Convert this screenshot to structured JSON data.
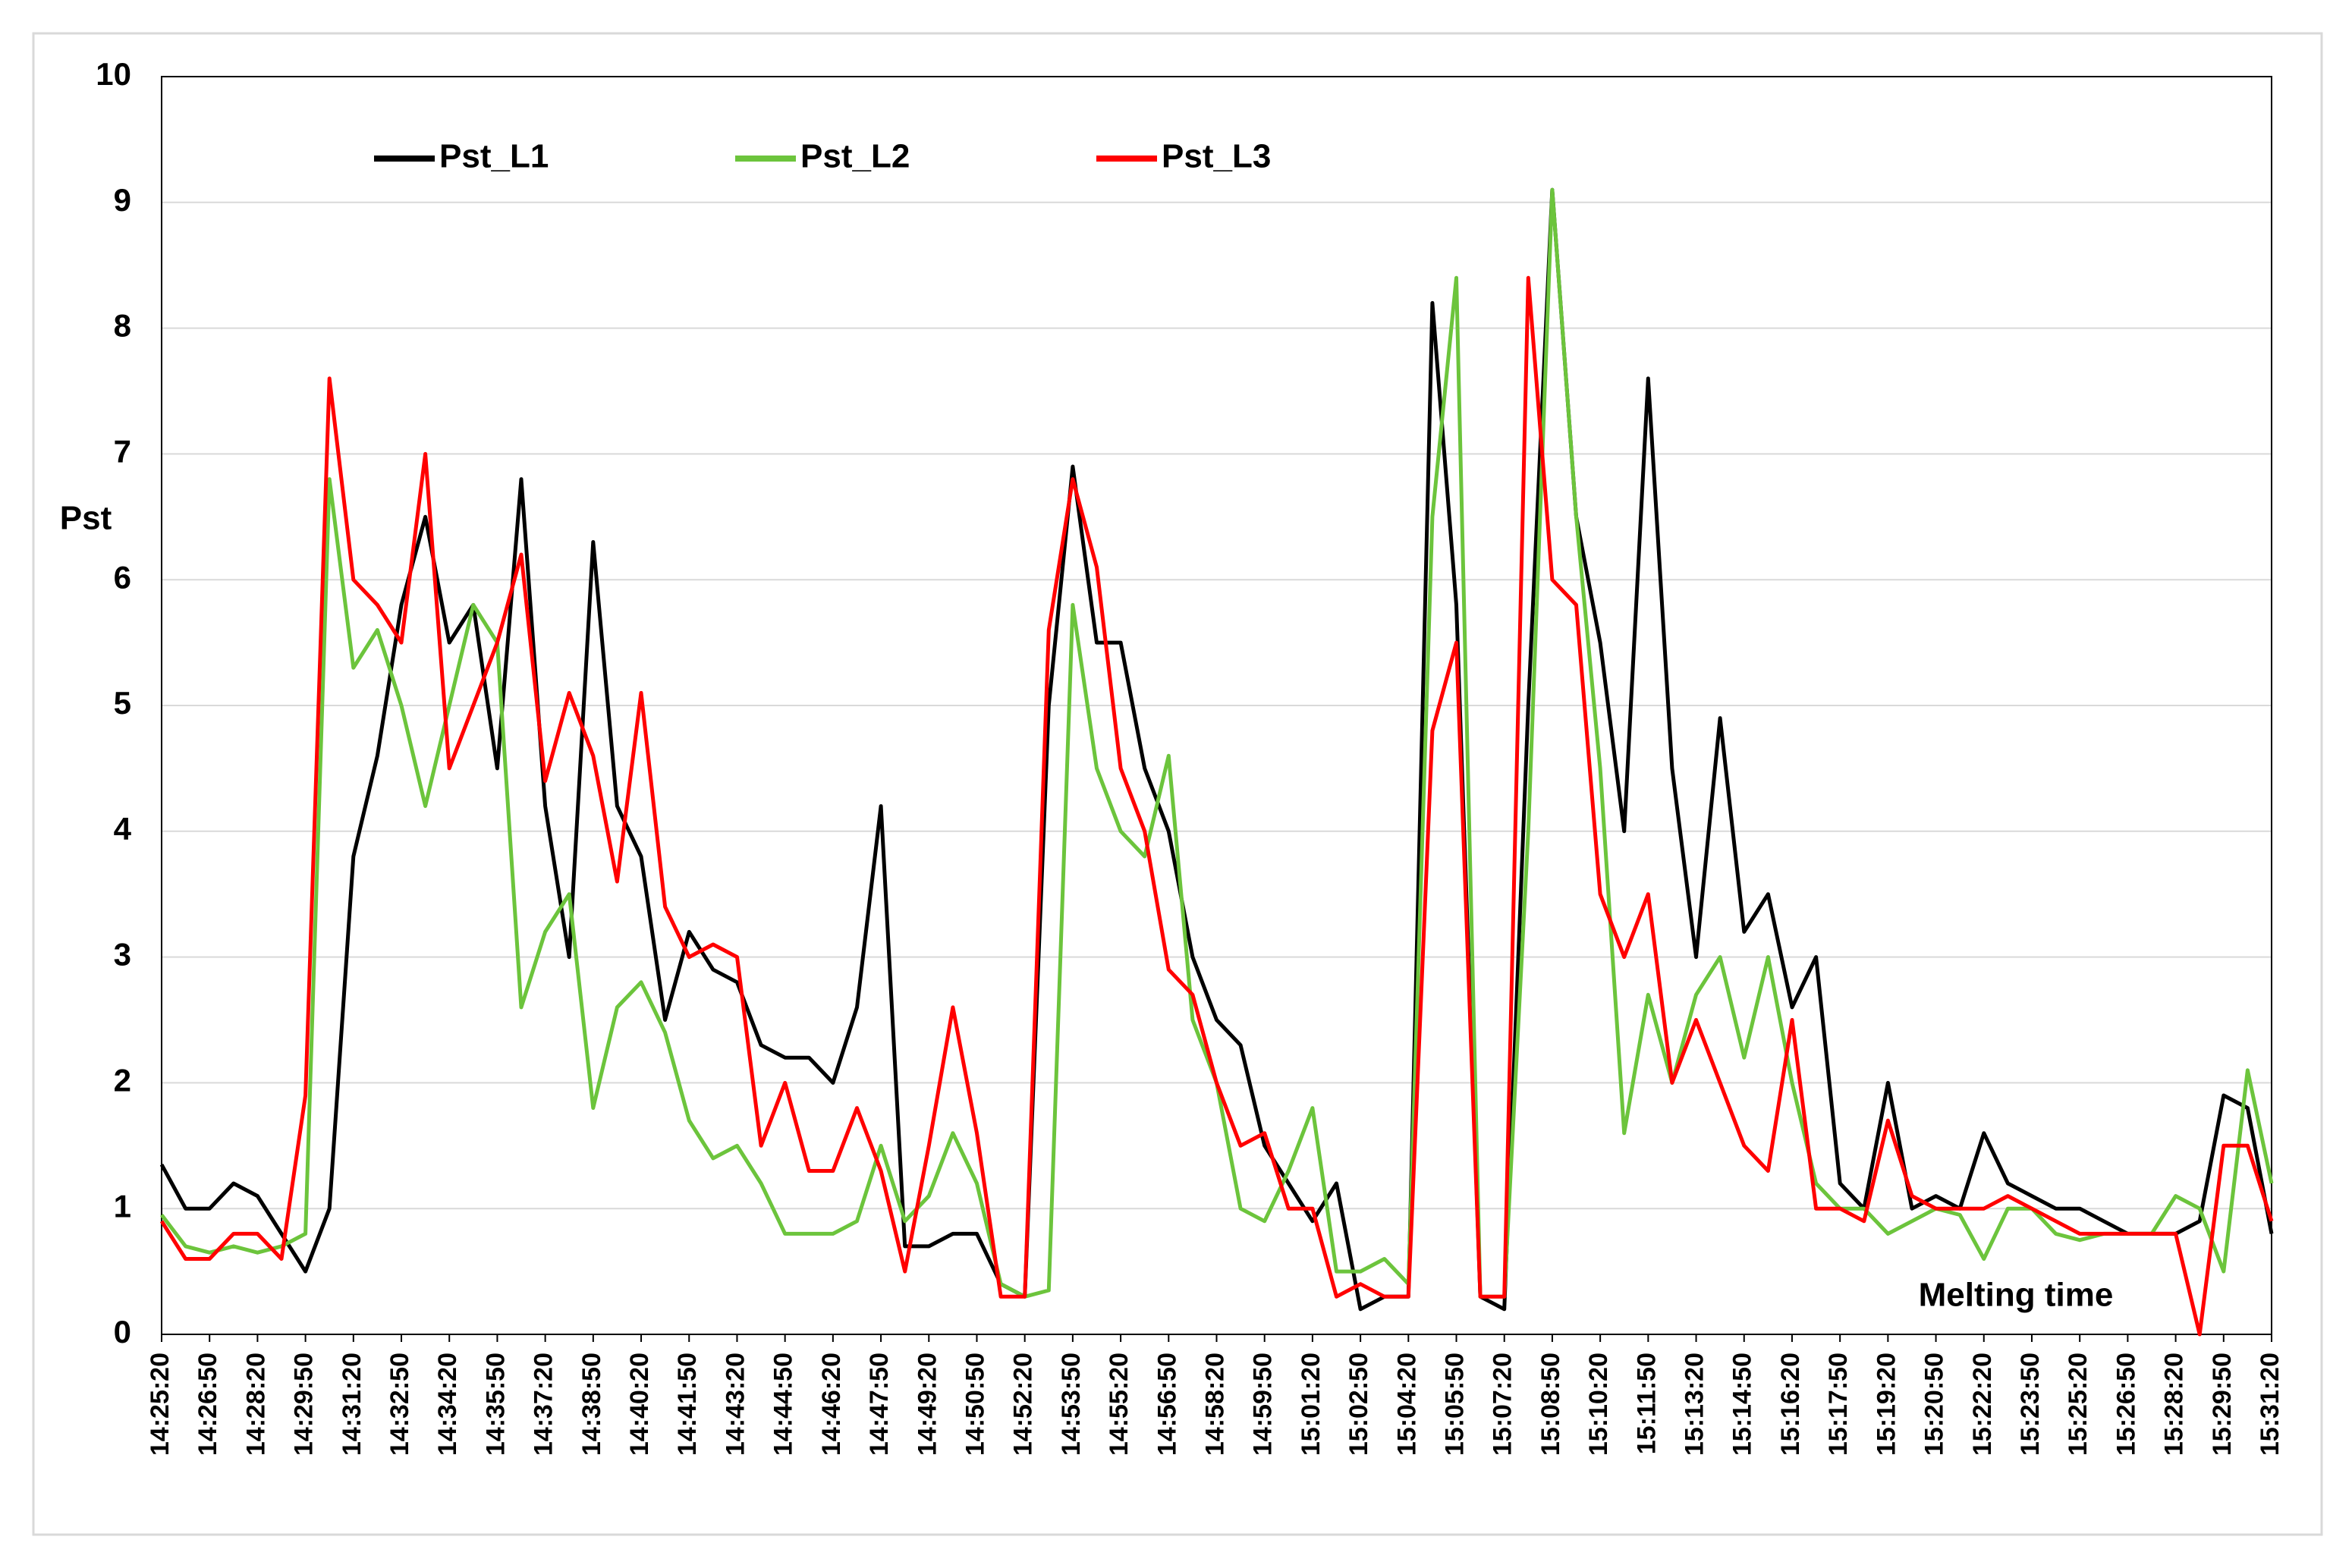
{
  "chart_data": {
    "type": "line",
    "y_label": "Pst",
    "annotation": "Melting time",
    "categories": [
      "14:25:20",
      null,
      "14:26:50",
      null,
      "14:28:20",
      null,
      "14:29:50",
      null,
      "14:31:20",
      null,
      "14:32:50",
      null,
      "14:34:20",
      null,
      "14:35:50",
      null,
      "14:37:20",
      null,
      "14:38:50",
      null,
      "14:40:20",
      null,
      "14:41:50",
      null,
      "14:43:20",
      null,
      "14:44:50",
      null,
      "14:46:20",
      null,
      "14:47:50",
      null,
      "14:49:20",
      null,
      "14:50:50",
      null,
      "14:52:20",
      null,
      "14:53:50",
      null,
      "14:55:20",
      null,
      "14:56:50",
      null,
      "14:58:20",
      null,
      "14:59:50",
      null,
      "15:01:20",
      null,
      "15:02:50",
      null,
      "15:04:20",
      null,
      "15:05:50",
      null,
      "15:07:20",
      null,
      "15:08:50",
      null,
      "15:10:20",
      null,
      "15:11:50",
      null,
      "15:13:20",
      null,
      "15:14:50",
      null,
      "15:16:20",
      null,
      "15:17:50",
      null,
      "15:19:20",
      null,
      "15:20:50",
      null,
      "15:22:20",
      null,
      "15:23:50",
      null,
      "15:25:20",
      null,
      "15:26:50",
      null,
      "15:28:20",
      null,
      "15:29:50",
      null,
      "15:31:20"
    ],
    "series": [
      {
        "name": "Pst_L1",
        "color": "#000000",
        "values": [
          1.35,
          1.0,
          1.0,
          1.2,
          1.1,
          0.8,
          0.5,
          1.0,
          3.8,
          4.6,
          5.8,
          6.5,
          5.5,
          5.8,
          4.5,
          6.8,
          4.2,
          3.0,
          6.3,
          4.2,
          3.8,
          2.5,
          3.2,
          2.9,
          2.8,
          2.3,
          2.2,
          2.2,
          2.0,
          2.6,
          4.2,
          0.7,
          0.7,
          0.8,
          0.8,
          0.4,
          0.3,
          5.0,
          6.9,
          5.5,
          5.5,
          4.5,
          4.0,
          3.0,
          2.5,
          2.3,
          1.5,
          1.2,
          0.9,
          1.2,
          0.2,
          0.3,
          0.3,
          8.2,
          5.8,
          0.3,
          0.2,
          5.0,
          9.1,
          6.5,
          5.5,
          4.0,
          7.6,
          4.5,
          3.0,
          4.9,
          3.2,
          3.5,
          2.6,
          3.0,
          1.2,
          1.0,
          2.0,
          1.0,
          1.1,
          1.0,
          1.6,
          1.2,
          1.1,
          1.0,
          1.0,
          0.9,
          0.8,
          0.8,
          0.8,
          0.9,
          1.9,
          1.8,
          0.8
        ]
      },
      {
        "name": "Pst_L2",
        "color": "#6cc43c",
        "values": [
          0.95,
          0.7,
          0.65,
          0.7,
          0.65,
          0.7,
          0.8,
          6.8,
          5.3,
          5.6,
          5.0,
          4.2,
          5.0,
          5.8,
          5.5,
          2.6,
          3.2,
          3.5,
          1.8,
          2.6,
          2.8,
          2.4,
          1.7,
          1.4,
          1.5,
          1.2,
          0.8,
          0.8,
          0.8,
          0.9,
          1.5,
          0.9,
          1.1,
          1.6,
          1.2,
          0.4,
          0.3,
          0.35,
          5.8,
          4.5,
          4.0,
          3.8,
          4.6,
          2.5,
          2.0,
          1.0,
          0.9,
          1.3,
          1.8,
          0.5,
          0.5,
          0.6,
          0.4,
          6.5,
          8.4,
          0.3,
          0.3,
          4.0,
          9.1,
          6.5,
          4.5,
          1.6,
          2.7,
          2.0,
          2.7,
          3.0,
          2.2,
          3.0,
          2.0,
          1.2,
          1.0,
          1.0,
          0.8,
          0.9,
          1.0,
          0.95,
          0.6,
          1.0,
          1.0,
          0.8,
          0.75,
          0.8,
          0.8,
          0.8,
          1.1,
          1.0,
          0.5,
          2.1,
          1.2
        ]
      },
      {
        "name": "Pst_L3",
        "color": "#ff0000",
        "values": [
          0.9,
          0.6,
          0.6,
          0.8,
          0.8,
          0.6,
          1.9,
          7.6,
          6.0,
          5.8,
          5.5,
          7.0,
          4.5,
          5.0,
          5.5,
          6.2,
          4.4,
          5.1,
          4.6,
          3.6,
          5.1,
          3.4,
          3.0,
          3.1,
          3.0,
          1.5,
          2.0,
          1.3,
          1.3,
          1.8,
          1.3,
          0.5,
          1.5,
          2.6,
          1.6,
          0.3,
          0.3,
          5.6,
          6.8,
          6.1,
          4.5,
          4.0,
          2.9,
          2.7,
          2.0,
          1.5,
          1.6,
          1.0,
          1.0,
          0.3,
          0.4,
          0.3,
          0.3,
          4.8,
          5.5,
          0.3,
          0.3,
          8.4,
          6.0,
          5.8,
          3.5,
          3.0,
          3.5,
          2.0,
          2.5,
          2.0,
          1.5,
          1.3,
          2.5,
          1.0,
          1.0,
          0.9,
          1.7,
          1.1,
          1.0,
          1.0,
          1.0,
          1.1,
          1.0,
          0.9,
          0.8,
          0.8,
          0.8,
          0.8,
          0.8,
          0,
          1.5,
          1.5,
          0.9
        ]
      }
    ],
    "ylim": [
      0,
      10
    ],
    "yticks": [
      0,
      1,
      2,
      3,
      4,
      5,
      6,
      7,
      8,
      9,
      10
    ],
    "grid": true,
    "legend": "top-left"
  }
}
